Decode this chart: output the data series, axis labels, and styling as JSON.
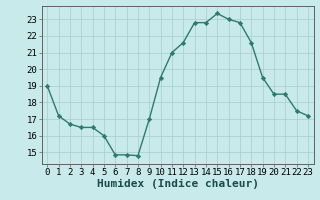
{
  "x": [
    0,
    1,
    2,
    3,
    4,
    5,
    6,
    7,
    8,
    9,
    10,
    11,
    12,
    13,
    14,
    15,
    16,
    17,
    18,
    19,
    20,
    21,
    22,
    23
  ],
  "y": [
    19.0,
    17.2,
    16.7,
    16.5,
    16.5,
    16.0,
    14.85,
    14.85,
    14.8,
    17.0,
    19.5,
    21.0,
    21.6,
    22.8,
    22.8,
    23.35,
    23.0,
    22.8,
    21.6,
    19.5,
    18.5,
    18.5,
    17.5,
    17.2
  ],
  "xlabel": "Humidex (Indice chaleur)",
  "xlim": [
    -0.5,
    23.5
  ],
  "ylim": [
    14.3,
    23.8
  ],
  "yticks": [
    15,
    16,
    17,
    18,
    19,
    20,
    21,
    22,
    23
  ],
  "xticks": [
    0,
    1,
    2,
    3,
    4,
    5,
    6,
    7,
    8,
    9,
    10,
    11,
    12,
    13,
    14,
    15,
    16,
    17,
    18,
    19,
    20,
    21,
    22,
    23
  ],
  "line_color": "#2d7b6e",
  "marker_color": "#2d7b6e",
  "bg_color": "#c8eaea",
  "grid_color": "#a8cccc",
  "xlabel_fontsize": 8,
  "tick_fontsize": 6.5,
  "marker": "D",
  "marker_size": 2.2,
  "line_width": 1.0
}
